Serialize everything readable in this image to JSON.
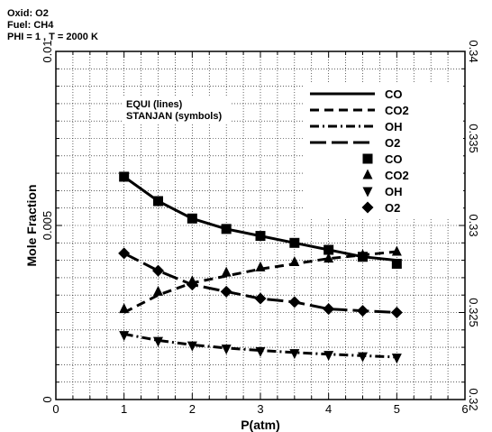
{
  "chart_data": {
    "type": "line",
    "header": [
      "Oxid: O2",
      "Fuel: CH4",
      "PHI = 1 , T = 2000 K"
    ],
    "xlabel": "P(atm)",
    "ylabel": "Mole Fraction",
    "xlim": [
      0,
      6
    ],
    "ylim": [
      0,
      0.01
    ],
    "y2lim": [
      0.32,
      0.34
    ],
    "x_ticks": [
      "0",
      "1",
      "2",
      "3",
      "4",
      "5",
      "6"
    ],
    "y_ticks": [
      "0",
      "0.005",
      "0.01"
    ],
    "y2_ticks": [
      "0.32",
      "0.325",
      "0.33",
      "0.335",
      "0.34"
    ],
    "grid": true,
    "annotation": [
      "EQUI (lines)",
      "STANJAN (symbols)"
    ],
    "legend_position": "top-right",
    "line_series": [
      {
        "name": "CO",
        "axis": "left",
        "dash": "solid",
        "x": [
          1,
          1.5,
          2,
          2.5,
          3,
          3.5,
          4,
          4.5,
          5
        ],
        "values": [
          0.0064,
          0.0057,
          0.0052,
          0.0049,
          0.0047,
          0.0045,
          0.0043,
          0.0041,
          0.004
        ]
      },
      {
        "name": "CO2",
        "axis": "right",
        "dash": "dash",
        "x": [
          1,
          1.5,
          2,
          2.5,
          3,
          3.5,
          4,
          4.5,
          5
        ],
        "values": [
          0.325,
          0.326,
          0.3267,
          0.3271,
          0.3275,
          0.3278,
          0.3281,
          0.3283,
          0.3285
        ]
      },
      {
        "name": "OH",
        "axis": "left",
        "dash": "dashdot",
        "x": [
          1,
          1.5,
          2,
          2.5,
          3,
          3.5,
          4,
          4.5,
          5
        ],
        "values": [
          0.00188,
          0.0017,
          0.00157,
          0.00148,
          0.00141,
          0.00135,
          0.0013,
          0.00126,
          0.00122
        ]
      },
      {
        "name": "O2",
        "axis": "left",
        "dash": "longdash",
        "x": [
          1,
          1.5,
          2,
          2.5,
          3,
          3.5,
          4,
          4.5,
          5
        ],
        "values": [
          0.0042,
          0.0037,
          0.0033,
          0.0031,
          0.0029,
          0.0028,
          0.0026,
          0.00255,
          0.0025
        ]
      }
    ],
    "symbol_series": [
      {
        "name": "CO",
        "axis": "left",
        "marker": "square",
        "x": [
          1,
          1.5,
          2,
          2.5,
          3,
          3.5,
          4,
          4.5,
          5
        ],
        "values": [
          0.0064,
          0.0057,
          0.0052,
          0.0049,
          0.0047,
          0.0045,
          0.0043,
          0.0041,
          0.0039
        ]
      },
      {
        "name": "CO2",
        "axis": "right",
        "marker": "triangle-up",
        "x": [
          1,
          1.5,
          2,
          2.5,
          3,
          3.5,
          4,
          4.5,
          5
        ],
        "values": [
          0.3252,
          0.3262,
          0.3268,
          0.3273,
          0.3276,
          0.3279,
          0.3281,
          0.3283,
          0.3285
        ]
      },
      {
        "name": "OH",
        "axis": "left",
        "marker": "triangle-down",
        "x": [
          1,
          1.5,
          2,
          2.5,
          3,
          3.5,
          4,
          4.5,
          5
        ],
        "values": [
          0.00185,
          0.00168,
          0.00155,
          0.00146,
          0.00139,
          0.00133,
          0.00128,
          0.00124,
          0.0012
        ]
      },
      {
        "name": "O2",
        "axis": "left",
        "marker": "diamond",
        "x": [
          1,
          1.5,
          2,
          2.5,
          3,
          3.5,
          4,
          4.5,
          5
        ],
        "values": [
          0.0042,
          0.0037,
          0.0033,
          0.0031,
          0.0029,
          0.0028,
          0.0026,
          0.00255,
          0.0025
        ]
      }
    ]
  }
}
